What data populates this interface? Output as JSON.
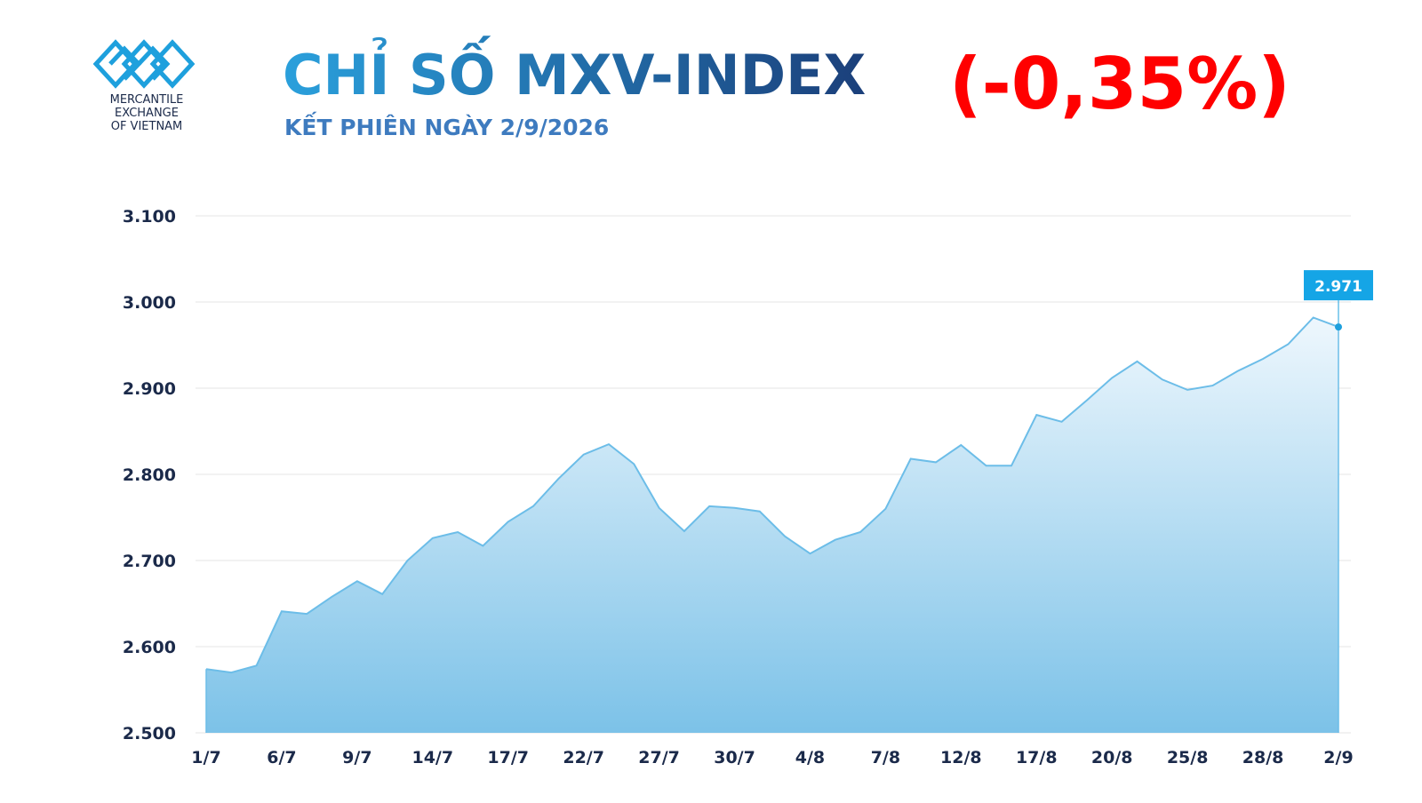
{
  "header": {
    "logo_lines": [
      "MERCANTILE",
      "EXCHANGE",
      "OF VIETNAM"
    ],
    "title": "CHỈ SỐ MXV-INDEX",
    "subtitle": "KẾT PHIÊN NGÀY 2/9/2026",
    "change": "(-0,35%)"
  },
  "chart_data": {
    "type": "area",
    "categories": [
      "1/7",
      null,
      null,
      "6/7",
      null,
      null,
      "9/7",
      null,
      null,
      "14/7",
      null,
      null,
      "17/7",
      null,
      null,
      "22/7",
      null,
      null,
      "27/7",
      null,
      null,
      "30/7",
      null,
      null,
      "4/8",
      null,
      null,
      "7/8",
      null,
      null,
      "12/8",
      null,
      null,
      "17/8",
      null,
      null,
      "20/8",
      null,
      null,
      "25/8",
      null,
      null,
      "28/8",
      null,
      null,
      "2/9"
    ],
    "values": [
      2574,
      2570,
      2578,
      2641,
      2638,
      2658,
      2676,
      2661,
      2700,
      2726,
      2733,
      2717,
      2745,
      2763,
      2795,
      2823,
      2835,
      2812,
      2761,
      2734,
      2763,
      2761,
      2757,
      2728,
      2708,
      2724,
      2733,
      2760,
      2818,
      2814,
      2834,
      2810,
      2810,
      2869,
      2861,
      2886,
      2912,
      2931,
      2910,
      2898,
      2903,
      2920,
      2934,
      2951,
      2982,
      2971
    ],
    "value_labels": [
      null,
      null,
      null,
      null,
      null,
      null,
      null,
      null,
      null,
      null,
      null,
      null,
      null,
      null,
      null,
      null,
      null,
      null,
      null,
      null,
      null,
      null,
      null,
      null,
      null,
      null,
      null,
      null,
      null,
      null,
      null,
      null,
      null,
      null,
      null,
      null,
      null,
      null,
      null,
      null,
      null,
      null,
      null,
      null,
      null,
      "2.971"
    ],
    "color": "#6cbde8",
    "ylim": [
      2500,
      3100
    ],
    "yticks": [
      {
        "value": 2500,
        "label": "2.500"
      },
      {
        "value": 2600,
        "label": "2.600"
      },
      {
        "value": 2700,
        "label": "2.700"
      },
      {
        "value": 2800,
        "label": "2.800"
      },
      {
        "value": 2900,
        "label": "2.900"
      },
      {
        "value": 3000,
        "label": "3.000"
      },
      {
        "value": 3100,
        "label": "3.100"
      }
    ],
    "grid": true
  }
}
